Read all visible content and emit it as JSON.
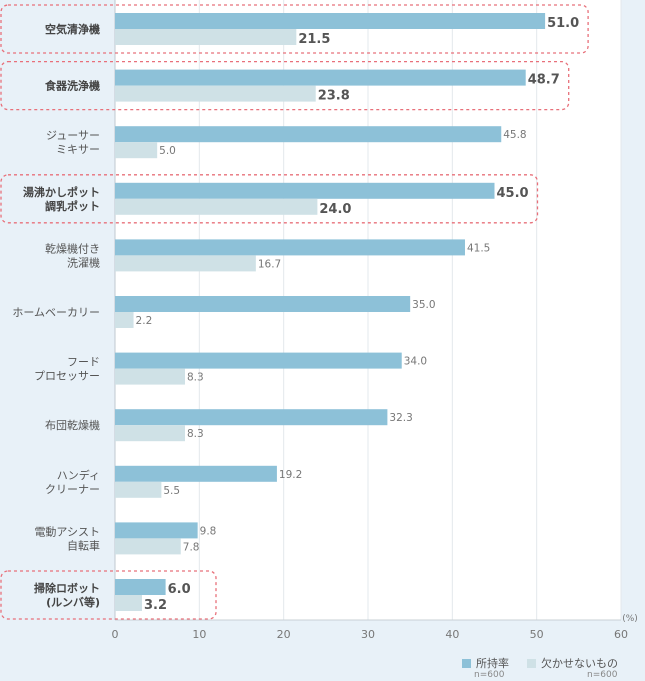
{
  "chart_data": {
    "type": "bar",
    "orientation": "horizontal",
    "categories": [
      [
        "空気清浄機"
      ],
      [
        "食器洗浄機"
      ],
      [
        "ジューサー",
        "ミキサー"
      ],
      [
        "湯沸かしポット",
        "調乳ポット"
      ],
      [
        "乾燥機付き",
        "洗濯機"
      ],
      [
        "ホームベーカリー"
      ],
      [
        "フード",
        "プロセッサー"
      ],
      [
        "布団乾燥機"
      ],
      [
        "ハンディ",
        "クリーナー"
      ],
      [
        "電動アシスト",
        "自転車"
      ],
      [
        "掃除ロボット",
        "(ルンバ等)"
      ]
    ],
    "highlighted": [
      true,
      true,
      false,
      true,
      false,
      false,
      false,
      false,
      false,
      false,
      true
    ],
    "series": [
      {
        "name": "所持率",
        "n": "n=600",
        "color": "#8dc1d8",
        "values": [
          51.0,
          48.7,
          45.8,
          45.0,
          41.5,
          35.0,
          34.0,
          32.3,
          19.2,
          9.8,
          6.0
        ]
      },
      {
        "name": "欠かせないもの",
        "n": "n=600",
        "color": "#cfe1e6",
        "values": [
          21.5,
          23.8,
          5.0,
          24.0,
          16.7,
          2.2,
          8.3,
          8.3,
          5.5,
          7.8,
          3.2
        ]
      }
    ],
    "xlim": [
      0,
      60
    ],
    "xticks": [
      0,
      10,
      20,
      30,
      40,
      50,
      60
    ],
    "unit": "(%)",
    "grid": true,
    "legend_position": "bottom-right"
  }
}
